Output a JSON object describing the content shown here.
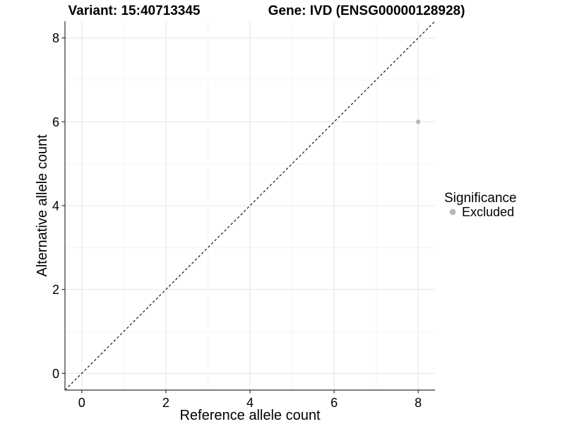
{
  "chart_data": {
    "type": "scatter",
    "titles": {
      "left": "Variant: 15:40713345",
      "right": "Gene: IVD (ENSG00000128928)"
    },
    "xlabel": "Reference allele count",
    "ylabel": "Alternative allele count",
    "xlim": [
      -0.4,
      8.4
    ],
    "ylim": [
      -0.4,
      8.4
    ],
    "xticks": [
      0,
      2,
      4,
      6,
      8
    ],
    "yticks": [
      0,
      2,
      4,
      6,
      8
    ],
    "xminor": [
      1,
      3,
      5,
      7
    ],
    "yminor": [
      1,
      3,
      5,
      7
    ],
    "grid": "major+minor",
    "identity_line": {
      "style": "dashed",
      "color": "#000000",
      "from": -0.4,
      "to": 8.4
    },
    "series": [
      {
        "name": "Excluded",
        "color": "#b8b8b8",
        "points": [
          {
            "x": 8,
            "y": 6
          }
        ],
        "point_radius": 3.2
      }
    ],
    "legend": {
      "title": "Significance",
      "position": "right",
      "entries": [
        {
          "label": "Excluded",
          "color": "#b8b8b8"
        }
      ]
    },
    "colors": {
      "grid_major": "#e7e7e7",
      "grid_minor": "#f2f2f2",
      "axis": "#333333",
      "background": "#ffffff"
    }
  }
}
